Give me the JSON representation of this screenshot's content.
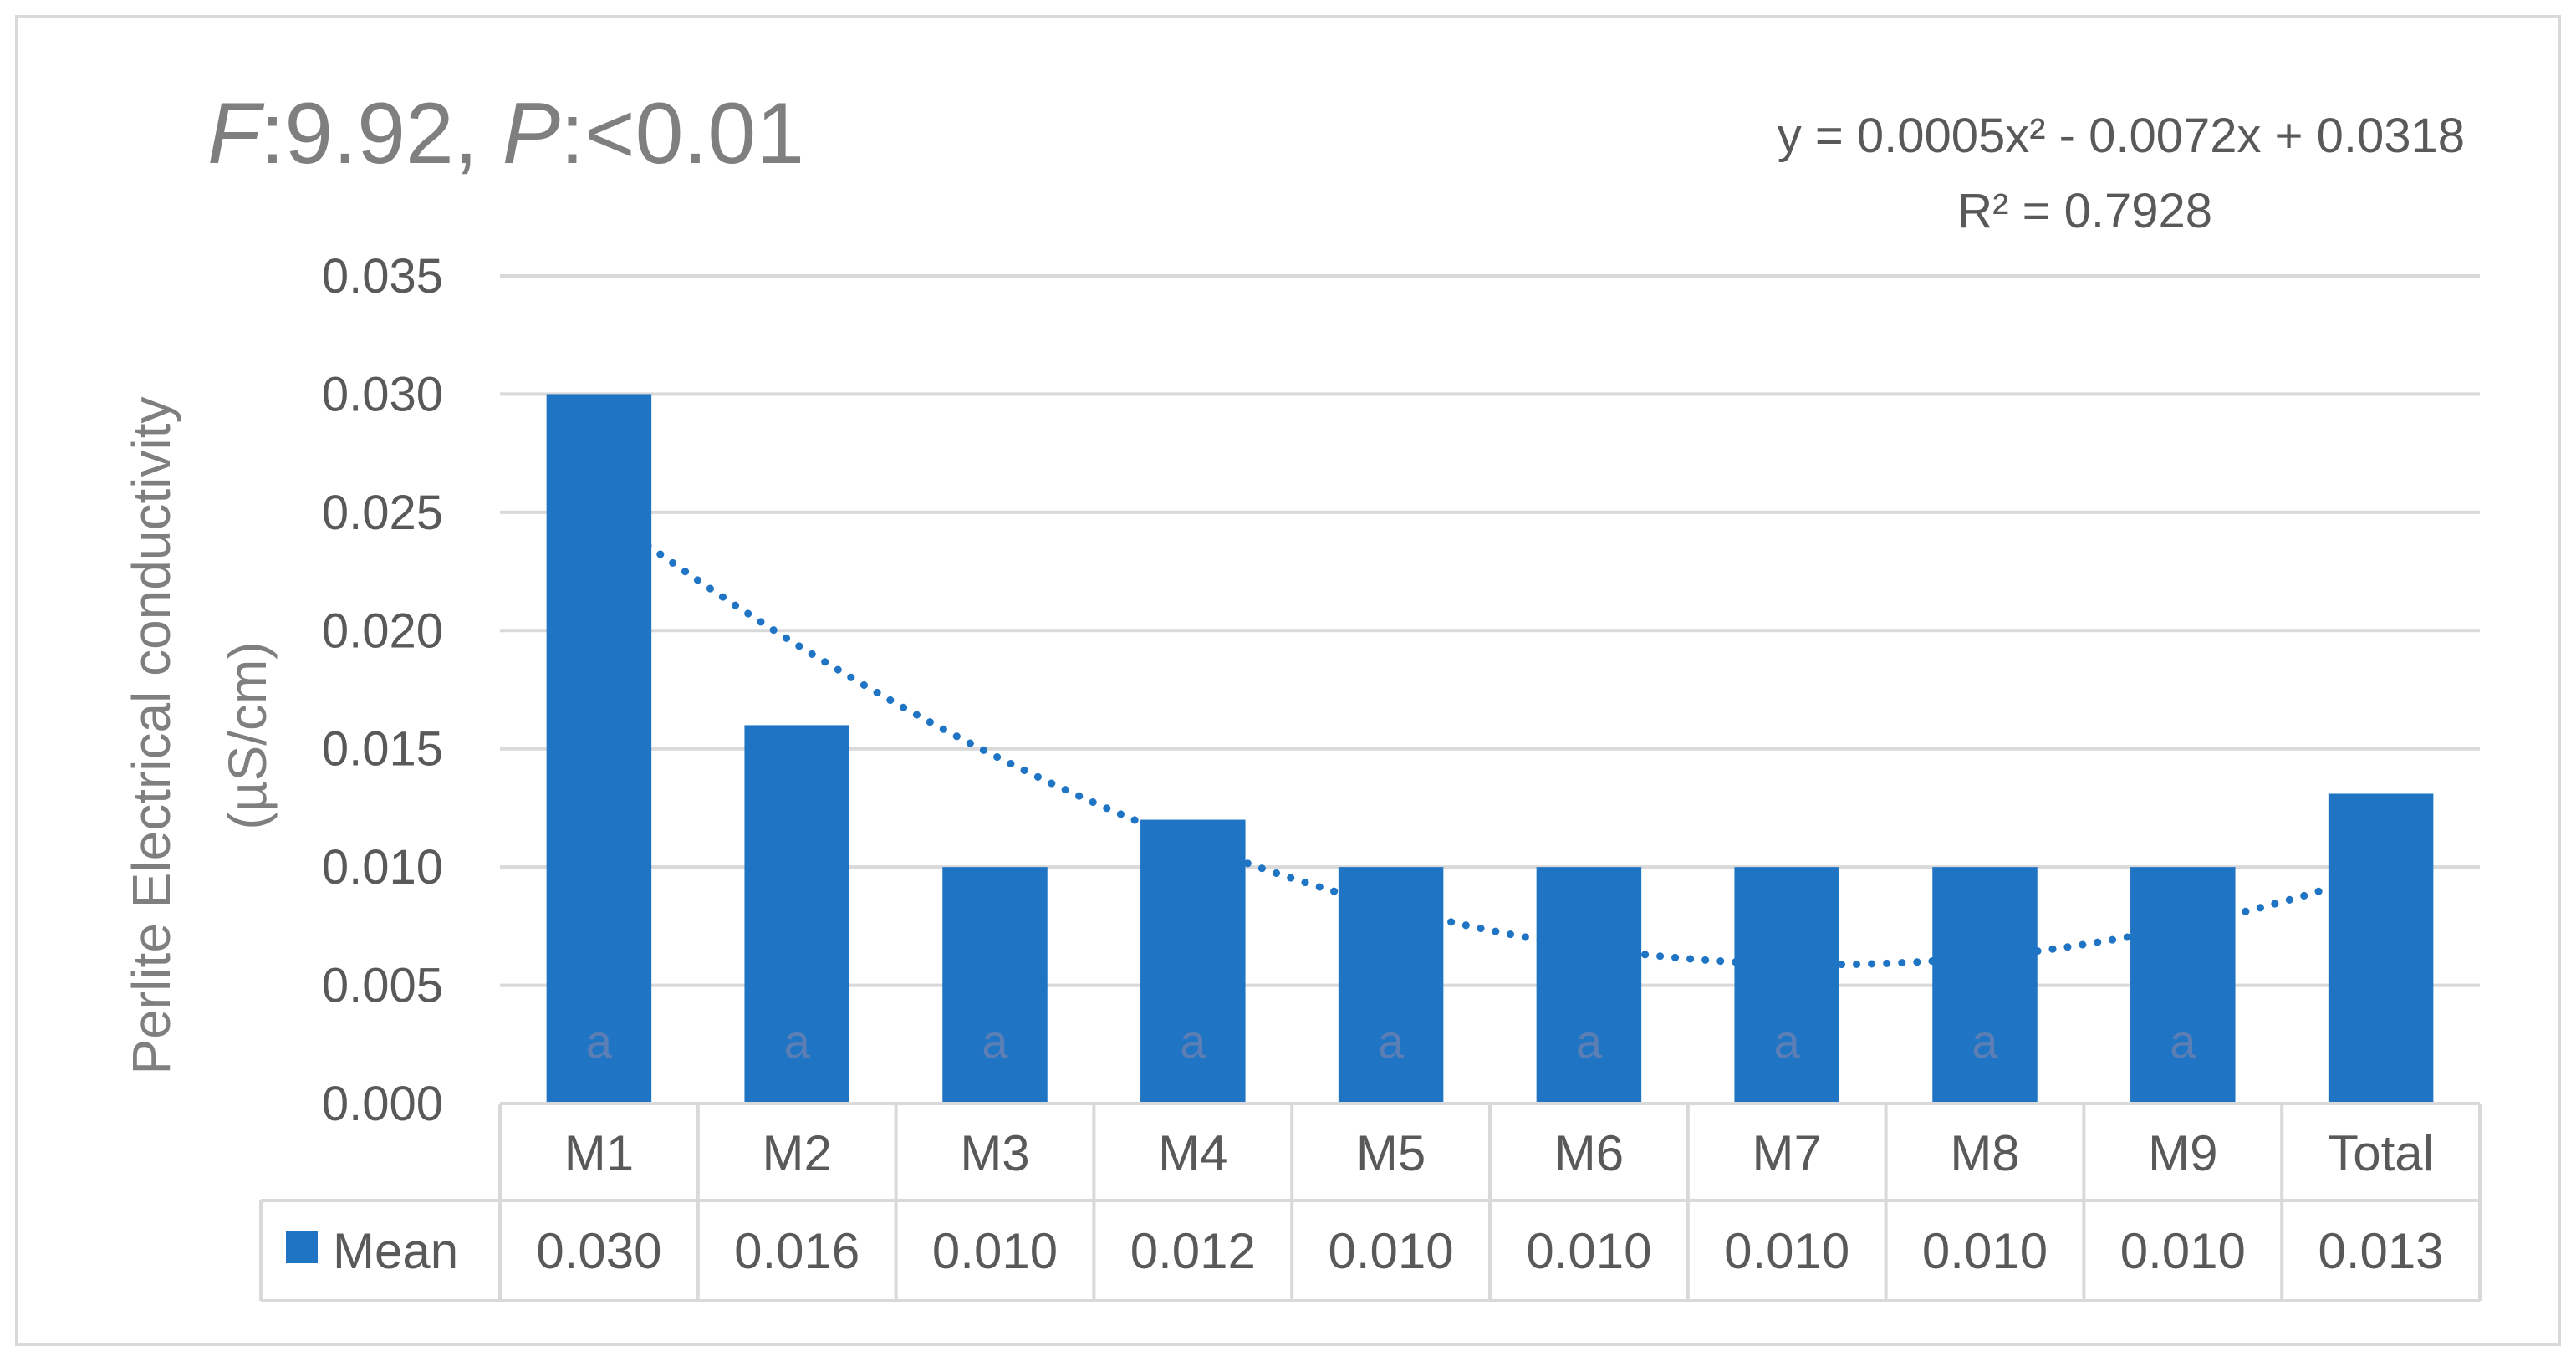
{
  "stats": {
    "f_label": "F",
    "f_value": ":9.92, ",
    "p_label": "P",
    "p_value": ":<0.01"
  },
  "trendline": {
    "equation": "y = 0.0005x² - 0.0072x + 0.0318",
    "r_squared": "R² = 0.7928",
    "coefficients": {
      "a": 0.0005,
      "b": -0.0072,
      "c": 0.0318
    },
    "color": "#1f74c4",
    "style": "dotted"
  },
  "chart_data": {
    "type": "bar",
    "categories": [
      "M1",
      "M2",
      "M3",
      "M4",
      "M5",
      "M6",
      "M7",
      "M8",
      "M9",
      "Total"
    ],
    "series": [
      {
        "name": "Mean",
        "values": [
          0.03,
          0.016,
          0.01,
          0.012,
          0.01,
          0.01,
          0.01,
          0.01,
          0.01,
          0.0131
        ]
      }
    ],
    "table_values": [
      "0.030",
      "0.016",
      "0.010",
      "0.012",
      "0.010",
      "0.010",
      "0.010",
      "0.010",
      "0.010",
      "0.013"
    ],
    "bar_labels": [
      "a",
      "a",
      "a",
      "a",
      "a",
      "a",
      "a",
      "a",
      "a",
      ""
    ],
    "ylabel_line1": "Perlite Electrical conductivity",
    "ylabel_line2": "(µS/cm)",
    "ylim": [
      0,
      0.035
    ],
    "yticks": [
      "0.000",
      "0.005",
      "0.010",
      "0.015",
      "0.020",
      "0.025",
      "0.030",
      "0.035"
    ],
    "grid": true,
    "legend": "data-table",
    "bar_color": "#1f74c4"
  }
}
